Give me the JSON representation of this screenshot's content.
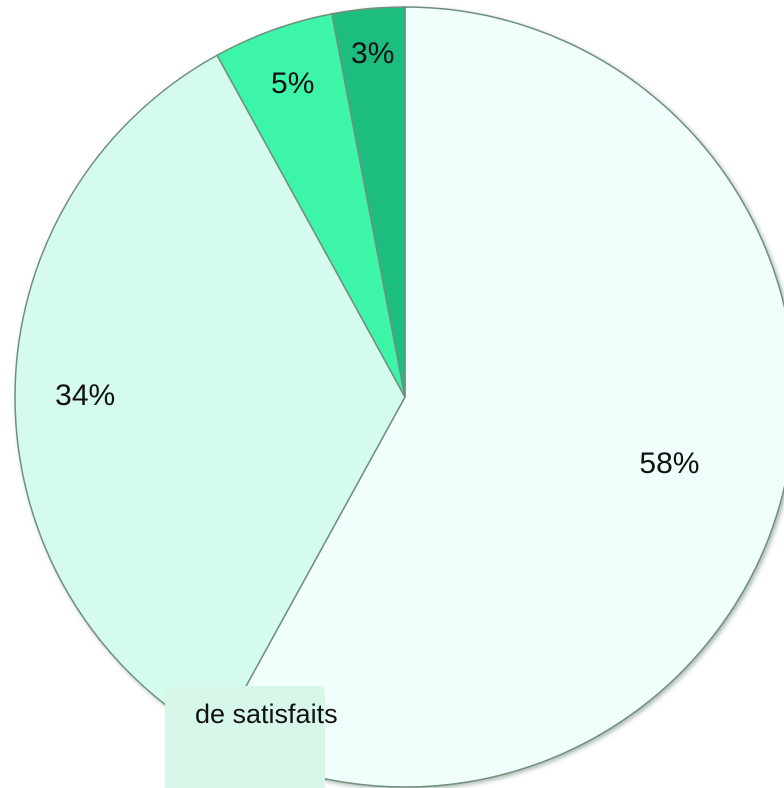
{
  "chart_data": {
    "type": "pie",
    "categories": [
      "de satisfaits",
      null,
      null,
      null
    ],
    "values": [
      58,
      34,
      5,
      3
    ],
    "value_labels": [
      "58%",
      "34%",
      "5%",
      "3%"
    ],
    "colors": [
      "#f0fffb",
      "#d4fbee",
      "#3ef5a9",
      "#1fbd7f"
    ]
  }
}
